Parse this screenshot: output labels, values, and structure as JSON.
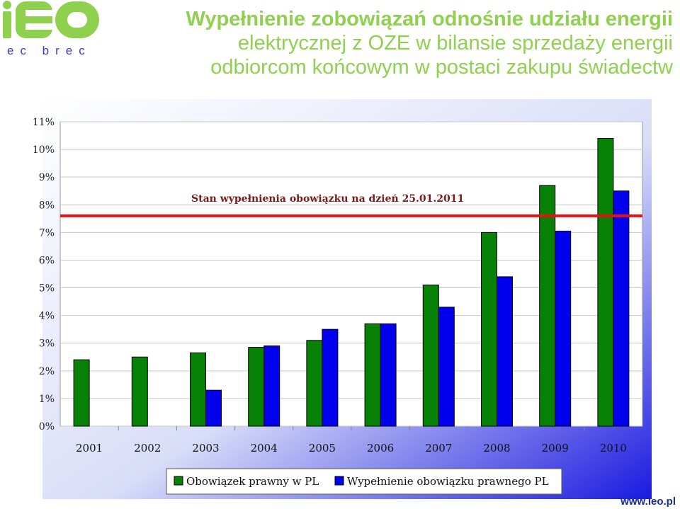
{
  "logo": {
    "main": "iEO",
    "sub": "ec brec"
  },
  "title": {
    "line1": "Wypełnienie zobowiązań odnośnie udziału energii",
    "line2": "elektrycznej z OZE w bilansie sprzedaży energii",
    "line3": "odbiorcom końcowym w postaci zakupu świadectw"
  },
  "footer": {
    "site": "www.ieo.pl"
  },
  "chart_data": {
    "type": "bar",
    "categories": [
      "2001",
      "2002",
      "2003",
      "2004",
      "2005",
      "2006",
      "2007",
      "2008",
      "2009",
      "2010"
    ],
    "series": [
      {
        "name": "Obowiązek prawny w PL",
        "color": "#078207",
        "values": [
          2.4,
          2.5,
          2.65,
          2.85,
          3.1,
          3.7,
          5.1,
          7.0,
          8.7,
          10.4
        ]
      },
      {
        "name": "Wypełnienie obowiązku prawnego PL",
        "color": "#0000ee",
        "values": [
          null,
          null,
          1.3,
          2.9,
          3.5,
          3.7,
          4.3,
          5.4,
          7.05,
          8.5
        ]
      }
    ],
    "yticks": [
      "0%",
      "1%",
      "2%",
      "3%",
      "4%",
      "5%",
      "6%",
      "7%",
      "8%",
      "9%",
      "10%",
      "11%"
    ],
    "ylim": [
      0,
      11
    ],
    "reference_line": {
      "value": 7.6,
      "label": "Stan wypełnienia obowiązku na dzień 25.01.2011",
      "color": "#e81010"
    },
    "grid": true,
    "legend_position": "bottom"
  }
}
